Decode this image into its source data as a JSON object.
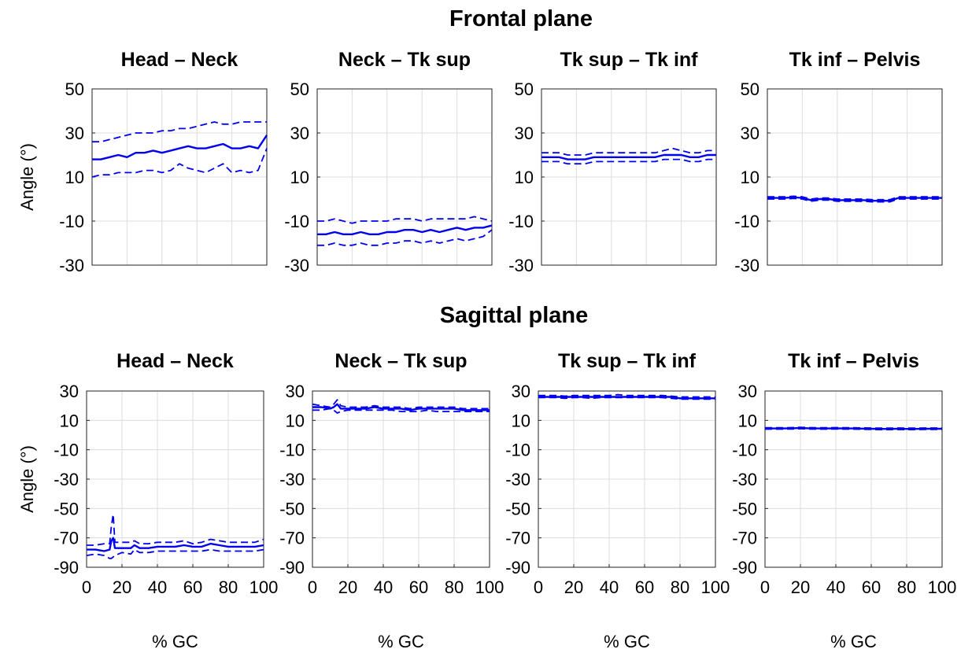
{
  "figure": {
    "frontal_title": "Frontal plane",
    "sagittal_title": "Sagittal plane",
    "colors": {
      "line": "#0000ee",
      "grid": "#dcdcdc",
      "axis": "#222222"
    }
  },
  "chart_data": [
    {
      "type": "line",
      "plane": "frontal",
      "title": "Head – Neck",
      "xlabel": "",
      "ylabel": "Angle (°)",
      "xlim": [
        0,
        100
      ],
      "ylim": [
        -30,
        50
      ],
      "yticks": [
        50,
        30,
        10,
        -10,
        -30
      ],
      "xticks": [],
      "x": [
        0,
        5,
        10,
        15,
        20,
        25,
        30,
        35,
        40,
        45,
        50,
        55,
        60,
        65,
        70,
        75,
        80,
        85,
        90,
        95,
        100
      ],
      "series": [
        {
          "name": "mean",
          "style": "solid",
          "values": [
            18,
            18,
            19,
            20,
            19,
            21,
            21,
            22,
            21,
            22,
            23,
            24,
            23,
            23,
            24,
            25,
            23,
            23,
            24,
            23,
            29
          ]
        },
        {
          "name": "upper",
          "style": "dashed",
          "values": [
            26,
            26,
            27,
            28,
            29,
            30,
            30,
            30,
            31,
            31,
            32,
            32,
            33,
            34,
            35,
            34,
            34,
            35,
            35,
            35,
            35
          ]
        },
        {
          "name": "lower",
          "style": "dashed",
          "values": [
            10,
            11,
            11,
            12,
            12,
            12,
            13,
            13,
            12,
            13,
            16,
            14,
            13,
            12,
            14,
            16,
            12,
            13,
            12,
            13,
            23
          ]
        }
      ]
    },
    {
      "type": "line",
      "plane": "frontal",
      "title": "Neck – Tk sup",
      "xlabel": "",
      "ylabel": "",
      "xlim": [
        0,
        100
      ],
      "ylim": [
        -30,
        50
      ],
      "yticks": [
        50,
        30,
        10,
        -10,
        -30
      ],
      "xticks": [],
      "x": [
        0,
        5,
        10,
        15,
        20,
        25,
        30,
        35,
        40,
        45,
        50,
        55,
        60,
        65,
        70,
        75,
        80,
        85,
        90,
        95,
        100
      ],
      "series": [
        {
          "name": "mean",
          "style": "solid",
          "values": [
            -16,
            -16,
            -15,
            -16,
            -16,
            -15,
            -16,
            -16,
            -15,
            -15,
            -14,
            -14,
            -15,
            -14,
            -15,
            -14,
            -13,
            -14,
            -13,
            -13,
            -12
          ]
        },
        {
          "name": "upper",
          "style": "dashed",
          "values": [
            -10,
            -10,
            -9,
            -10,
            -11,
            -10,
            -10,
            -10,
            -10,
            -9,
            -9,
            -9,
            -10,
            -9,
            -9,
            -9,
            -9,
            -9,
            -8,
            -9,
            -10
          ]
        },
        {
          "name": "lower",
          "style": "dashed",
          "values": [
            -21,
            -21,
            -20,
            -21,
            -21,
            -20,
            -21,
            -21,
            -20,
            -20,
            -19,
            -19,
            -20,
            -19,
            -20,
            -19,
            -18,
            -19,
            -18,
            -17,
            -14
          ]
        }
      ]
    },
    {
      "type": "line",
      "plane": "frontal",
      "title": "Tk sup – Tk inf",
      "xlabel": "",
      "ylabel": "",
      "xlim": [
        0,
        100
      ],
      "ylim": [
        -30,
        50
      ],
      "yticks": [
        50,
        30,
        10,
        -10,
        -30
      ],
      "xticks": [],
      "x": [
        0,
        5,
        10,
        15,
        20,
        25,
        30,
        35,
        40,
        45,
        50,
        55,
        60,
        65,
        70,
        75,
        80,
        85,
        90,
        95,
        100
      ],
      "series": [
        {
          "name": "mean",
          "style": "solid",
          "values": [
            19,
            19,
            19,
            18,
            18,
            18,
            19,
            19,
            19,
            19,
            19,
            19,
            19,
            19,
            20,
            20,
            20,
            19,
            19,
            20,
            20
          ]
        },
        {
          "name": "upper",
          "style": "dashed",
          "values": [
            21,
            21,
            21,
            20,
            20,
            20,
            21,
            21,
            21,
            21,
            21,
            21,
            21,
            21,
            22,
            23,
            22,
            21,
            21,
            22,
            22
          ]
        },
        {
          "name": "lower",
          "style": "dashed",
          "values": [
            17,
            17,
            17,
            16,
            16,
            16,
            17,
            17,
            17,
            17,
            17,
            17,
            17,
            17,
            18,
            18,
            18,
            17,
            17,
            18,
            18
          ]
        }
      ]
    },
    {
      "type": "line",
      "plane": "frontal",
      "title": "Tk inf – Pelvis",
      "xlabel": "",
      "ylabel": "",
      "xlim": [
        0,
        100
      ],
      "ylim": [
        -30,
        50
      ],
      "yticks": [
        50,
        30,
        10,
        -10,
        -30
      ],
      "xticks": [],
      "x": [
        0,
        5,
        10,
        15,
        20,
        25,
        30,
        35,
        40,
        45,
        50,
        55,
        60,
        65,
        70,
        75,
        80,
        85,
        90,
        95,
        100
      ],
      "series": [
        {
          "name": "mean",
          "style": "solid",
          "values": [
            0.5,
            0.5,
            0.5,
            0.8,
            0.5,
            -0.5,
            0,
            0,
            -0.5,
            -0.5,
            -0.5,
            -0.5,
            -0.8,
            -0.8,
            -0.8,
            0.5,
            0.5,
            0.5,
            0.5,
            0.5,
            0.5
          ]
        },
        {
          "name": "upper",
          "style": "dashed",
          "values": [
            1,
            1,
            1,
            1.3,
            1,
            0,
            0.5,
            0.5,
            0,
            0,
            0,
            0,
            -0.3,
            -0.3,
            -0.3,
            1,
            1,
            1,
            1,
            1,
            1
          ]
        },
        {
          "name": "lower",
          "style": "dashed",
          "values": [
            0,
            0,
            0,
            0.3,
            0,
            -1,
            -0.5,
            -0.5,
            -1,
            -1,
            -1,
            -1,
            -1.3,
            -1.3,
            -1.3,
            0,
            0,
            0,
            0,
            0,
            0
          ]
        }
      ]
    },
    {
      "type": "line",
      "plane": "sagittal",
      "title": "Head – Neck",
      "xlabel": "% GC",
      "ylabel": "Angle (°)",
      "xlim": [
        0,
        100
      ],
      "ylim": [
        -90,
        30
      ],
      "yticks": [
        30,
        10,
        -10,
        -30,
        -50,
        -70,
        -90
      ],
      "xticks": [
        0,
        20,
        40,
        60,
        80,
        100
      ],
      "x": [
        0,
        5,
        10,
        13,
        14,
        15,
        16,
        18,
        20,
        25,
        27,
        30,
        35,
        40,
        45,
        50,
        55,
        60,
        65,
        70,
        75,
        80,
        85,
        90,
        95,
        100
      ],
      "series": [
        {
          "name": "mean",
          "style": "solid",
          "values": [
            -78,
            -78,
            -79,
            -78,
            -72,
            -70,
            -77,
            -77,
            -77,
            -77,
            -75,
            -77,
            -77,
            -76,
            -76,
            -76,
            -75,
            -76,
            -76,
            -74,
            -75,
            -76,
            -76,
            -76,
            -76,
            -75
          ]
        },
        {
          "name": "upper",
          "style": "dashed",
          "values": [
            -75,
            -75,
            -74,
            -74,
            -62,
            -54,
            -73,
            -73,
            -73,
            -73,
            -72,
            -74,
            -74,
            -73,
            -73,
            -73,
            -72,
            -74,
            -73,
            -71,
            -72,
            -73,
            -73,
            -73,
            -73,
            -71
          ]
        },
        {
          "name": "lower",
          "style": "dashed",
          "values": [
            -82,
            -81,
            -82,
            -84,
            -84,
            -83,
            -82,
            -81,
            -80,
            -81,
            -78,
            -80,
            -80,
            -79,
            -79,
            -79,
            -79,
            -79,
            -79,
            -78,
            -79,
            -79,
            -79,
            -79,
            -79,
            -78
          ]
        }
      ]
    },
    {
      "type": "line",
      "plane": "sagittal",
      "title": "Neck – Tk sup",
      "xlabel": "% GC",
      "ylabel": "",
      "xlim": [
        0,
        100
      ],
      "ylim": [
        -90,
        30
      ],
      "yticks": [
        30,
        10,
        -10,
        -30,
        -50,
        -70,
        -90
      ],
      "xticks": [
        0,
        20,
        40,
        60,
        80,
        100
      ],
      "x": [
        0,
        5,
        10,
        12,
        14,
        16,
        20,
        25,
        30,
        35,
        40,
        45,
        50,
        55,
        60,
        65,
        70,
        75,
        80,
        85,
        90,
        95,
        100
      ],
      "series": [
        {
          "name": "mean",
          "style": "solid",
          "values": [
            19,
            19,
            18,
            19,
            21,
            18,
            18,
            18,
            18,
            19,
            18,
            18,
            18,
            17,
            18,
            18,
            18,
            18,
            18,
            17,
            17,
            17,
            17
          ]
        },
        {
          "name": "upper",
          "style": "dashed",
          "values": [
            21,
            20,
            19,
            21,
            24,
            20,
            19,
            19,
            19,
            20,
            19,
            19,
            19,
            18,
            19,
            19,
            19,
            19,
            19,
            18,
            18,
            18,
            18
          ]
        },
        {
          "name": "lower",
          "style": "dashed",
          "values": [
            17,
            17,
            18,
            17,
            15,
            16,
            17,
            17,
            17,
            17,
            17,
            17,
            16,
            16,
            16,
            17,
            16,
            16,
            16,
            16,
            16,
            16,
            16
          ]
        }
      ]
    },
    {
      "type": "line",
      "plane": "sagittal",
      "title": "Tk sup – Tk inf",
      "xlabel": "% GC",
      "ylabel": "",
      "xlim": [
        0,
        100
      ],
      "ylim": [
        -90,
        30
      ],
      "yticks": [
        30,
        10,
        -10,
        -30,
        -50,
        -70,
        -90
      ],
      "xticks": [
        0,
        20,
        40,
        60,
        80,
        100
      ],
      "x": [
        0,
        5,
        10,
        15,
        20,
        25,
        30,
        35,
        40,
        45,
        50,
        55,
        60,
        65,
        70,
        75,
        80,
        85,
        90,
        95,
        100
      ],
      "series": [
        {
          "name": "mean",
          "style": "solid",
          "values": [
            26,
            26,
            26,
            26,
            26,
            26,
            26,
            26,
            26,
            26,
            26,
            26,
            26,
            26,
            26,
            26,
            25,
            25,
            25,
            25,
            25
          ]
        },
        {
          "name": "upper",
          "style": "dashed",
          "values": [
            27,
            27,
            27,
            26.5,
            27,
            27,
            27,
            27,
            27,
            27.5,
            27,
            27,
            27,
            27,
            27,
            26.5,
            26,
            26,
            26,
            26,
            26
          ]
        },
        {
          "name": "lower",
          "style": "dashed",
          "values": [
            25.5,
            25.5,
            25.5,
            25,
            25.5,
            25.5,
            25,
            25.5,
            25.5,
            25.5,
            25.5,
            25.5,
            25.5,
            25.5,
            25.5,
            25,
            24.5,
            24.5,
            24.5,
            24.5,
            24.5
          ]
        }
      ]
    },
    {
      "type": "line",
      "plane": "sagittal",
      "title": "Tk inf – Pelvis",
      "xlabel": "% GC",
      "ylabel": "",
      "xlim": [
        0,
        100
      ],
      "ylim": [
        -90,
        30
      ],
      "yticks": [
        30,
        10,
        -10,
        -30,
        -50,
        -70,
        -90
      ],
      "xticks": [
        0,
        20,
        40,
        60,
        80,
        100
      ],
      "x": [
        0,
        5,
        10,
        15,
        20,
        25,
        30,
        35,
        40,
        45,
        50,
        55,
        60,
        65,
        70,
        75,
        80,
        85,
        90,
        95,
        100
      ],
      "series": [
        {
          "name": "mean",
          "style": "solid",
          "values": [
            4.5,
            4.5,
            4.5,
            4.6,
            4.8,
            4.6,
            4.5,
            4.5,
            4.6,
            4.5,
            4.5,
            4.4,
            4.3,
            4.2,
            4.2,
            4.3,
            4.2,
            4.2,
            4.3,
            4.3,
            4.3
          ]
        },
        {
          "name": "upper",
          "style": "dashed",
          "values": [
            5,
            5,
            5,
            5.1,
            5.3,
            5.1,
            5,
            5,
            5.1,
            5,
            5,
            4.9,
            4.8,
            4.7,
            4.7,
            4.8,
            4.7,
            4.7,
            4.8,
            4.8,
            4.8
          ]
        },
        {
          "name": "lower",
          "style": "dashed",
          "values": [
            4,
            4,
            4,
            4.1,
            4.3,
            4.1,
            4,
            4,
            4.1,
            4,
            4,
            3.9,
            3.8,
            3.7,
            3.7,
            3.8,
            3.7,
            3.7,
            3.8,
            3.8,
            3.8
          ]
        }
      ]
    }
  ]
}
